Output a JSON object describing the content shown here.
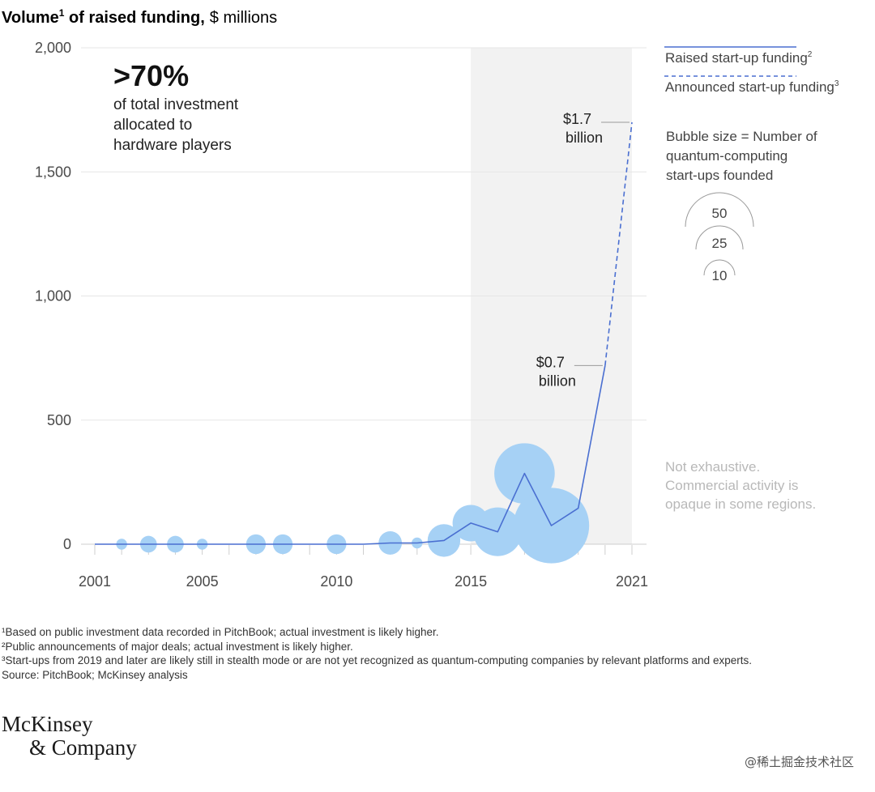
{
  "chart_data": {
    "type": "line",
    "title": "Volume",
    "title_sup": "1",
    "title_rest": " of raised funding,",
    "title_unit": "$ millions",
    "ylim": [
      0,
      2000
    ],
    "xlim": [
      2001,
      2021
    ],
    "y_ticks": [
      "2,000",
      "1,500",
      "1,000",
      "500",
      "0"
    ],
    "y_tick_values": [
      2000,
      1500,
      1000,
      500,
      0
    ],
    "x_ticks": [
      "2001",
      "2005",
      "2010",
      "2015",
      "2021"
    ],
    "x_tick_values": [
      2001,
      2005,
      2010,
      2015,
      2021
    ],
    "grid": true,
    "shaded_range": [
      2015,
      2021
    ],
    "series": [
      {
        "name": "Raised start-up funding",
        "style": "solid",
        "color": "#4a6fd1",
        "x": [
          2001,
          2002,
          2003,
          2004,
          2005,
          2006,
          2007,
          2008,
          2009,
          2010,
          2011,
          2012,
          2013,
          2014,
          2015,
          2016,
          2017,
          2018,
          2019,
          2020
        ],
        "values": [
          0,
          0,
          0,
          0,
          0,
          0,
          0,
          0,
          0,
          0,
          0,
          5,
          5,
          15,
          85,
          50,
          285,
          75,
          145,
          720
        ]
      },
      {
        "name": "Announced start-up funding",
        "style": "dashed",
        "color": "#4a6fd1",
        "x": [
          2020,
          2021
        ],
        "values": [
          720,
          1700
        ]
      }
    ],
    "bubbles": {
      "color": "#a6d1f5",
      "x": [
        2002,
        2003,
        2004,
        2005,
        2007,
        2008,
        2010,
        2012,
        2013,
        2014,
        2015,
        2016,
        2017,
        2018
      ],
      "y": [
        0,
        0,
        0,
        0,
        0,
        0,
        0,
        5,
        5,
        15,
        85,
        50,
        285,
        75
      ],
      "count": [
        2,
        5,
        5,
        2,
        7,
        7,
        7,
        10,
        2,
        20,
        25,
        45,
        70,
        110
      ]
    },
    "annotations": [
      {
        "x": 2021,
        "y": 1700,
        "line1": "$1.7",
        "line2": "billion"
      },
      {
        "x": 2020,
        "y": 720,
        "line1": "$0.7",
        "line2": "billion"
      }
    ],
    "highlight": {
      "big": ">70%",
      "lines": [
        "of total investment",
        "allocated to",
        "hardware players"
      ]
    },
    "legend": {
      "items": [
        {
          "label": "Raised start-up funding",
          "sup": "2",
          "style": "solid"
        },
        {
          "label": "Announced start-up funding",
          "sup": "3",
          "style": "dashed"
        }
      ],
      "bubble_title": [
        "Bubble size = Number of",
        "quantum-computing",
        "start-ups founded"
      ],
      "bubble_sizes": [
        "50",
        "25",
        "10"
      ]
    },
    "note": [
      "Not exhaustive.",
      "Commercial activity is",
      "opaque in some regions."
    ]
  },
  "footnotes": [
    "¹Based on public investment data recorded in PitchBook; actual investment is likely higher.",
    "²Public announcements of major deals; actual investment is likely higher.",
    "³Start-ups from 2019 and later are likely still in stealth mode or are not yet recognized as quantum-computing companies by relevant platforms and experts.",
    " Source: PitchBook; McKinsey analysis"
  ],
  "logo": {
    "line1": "McKinsey",
    "line2": "& Company"
  },
  "watermark": "@稀土掘金技术社区",
  "colors": {
    "line": "#4a6fd1",
    "bubble": "#a6d1f5",
    "shade": "#f2f2f2",
    "grid": "#e6e6e6"
  }
}
